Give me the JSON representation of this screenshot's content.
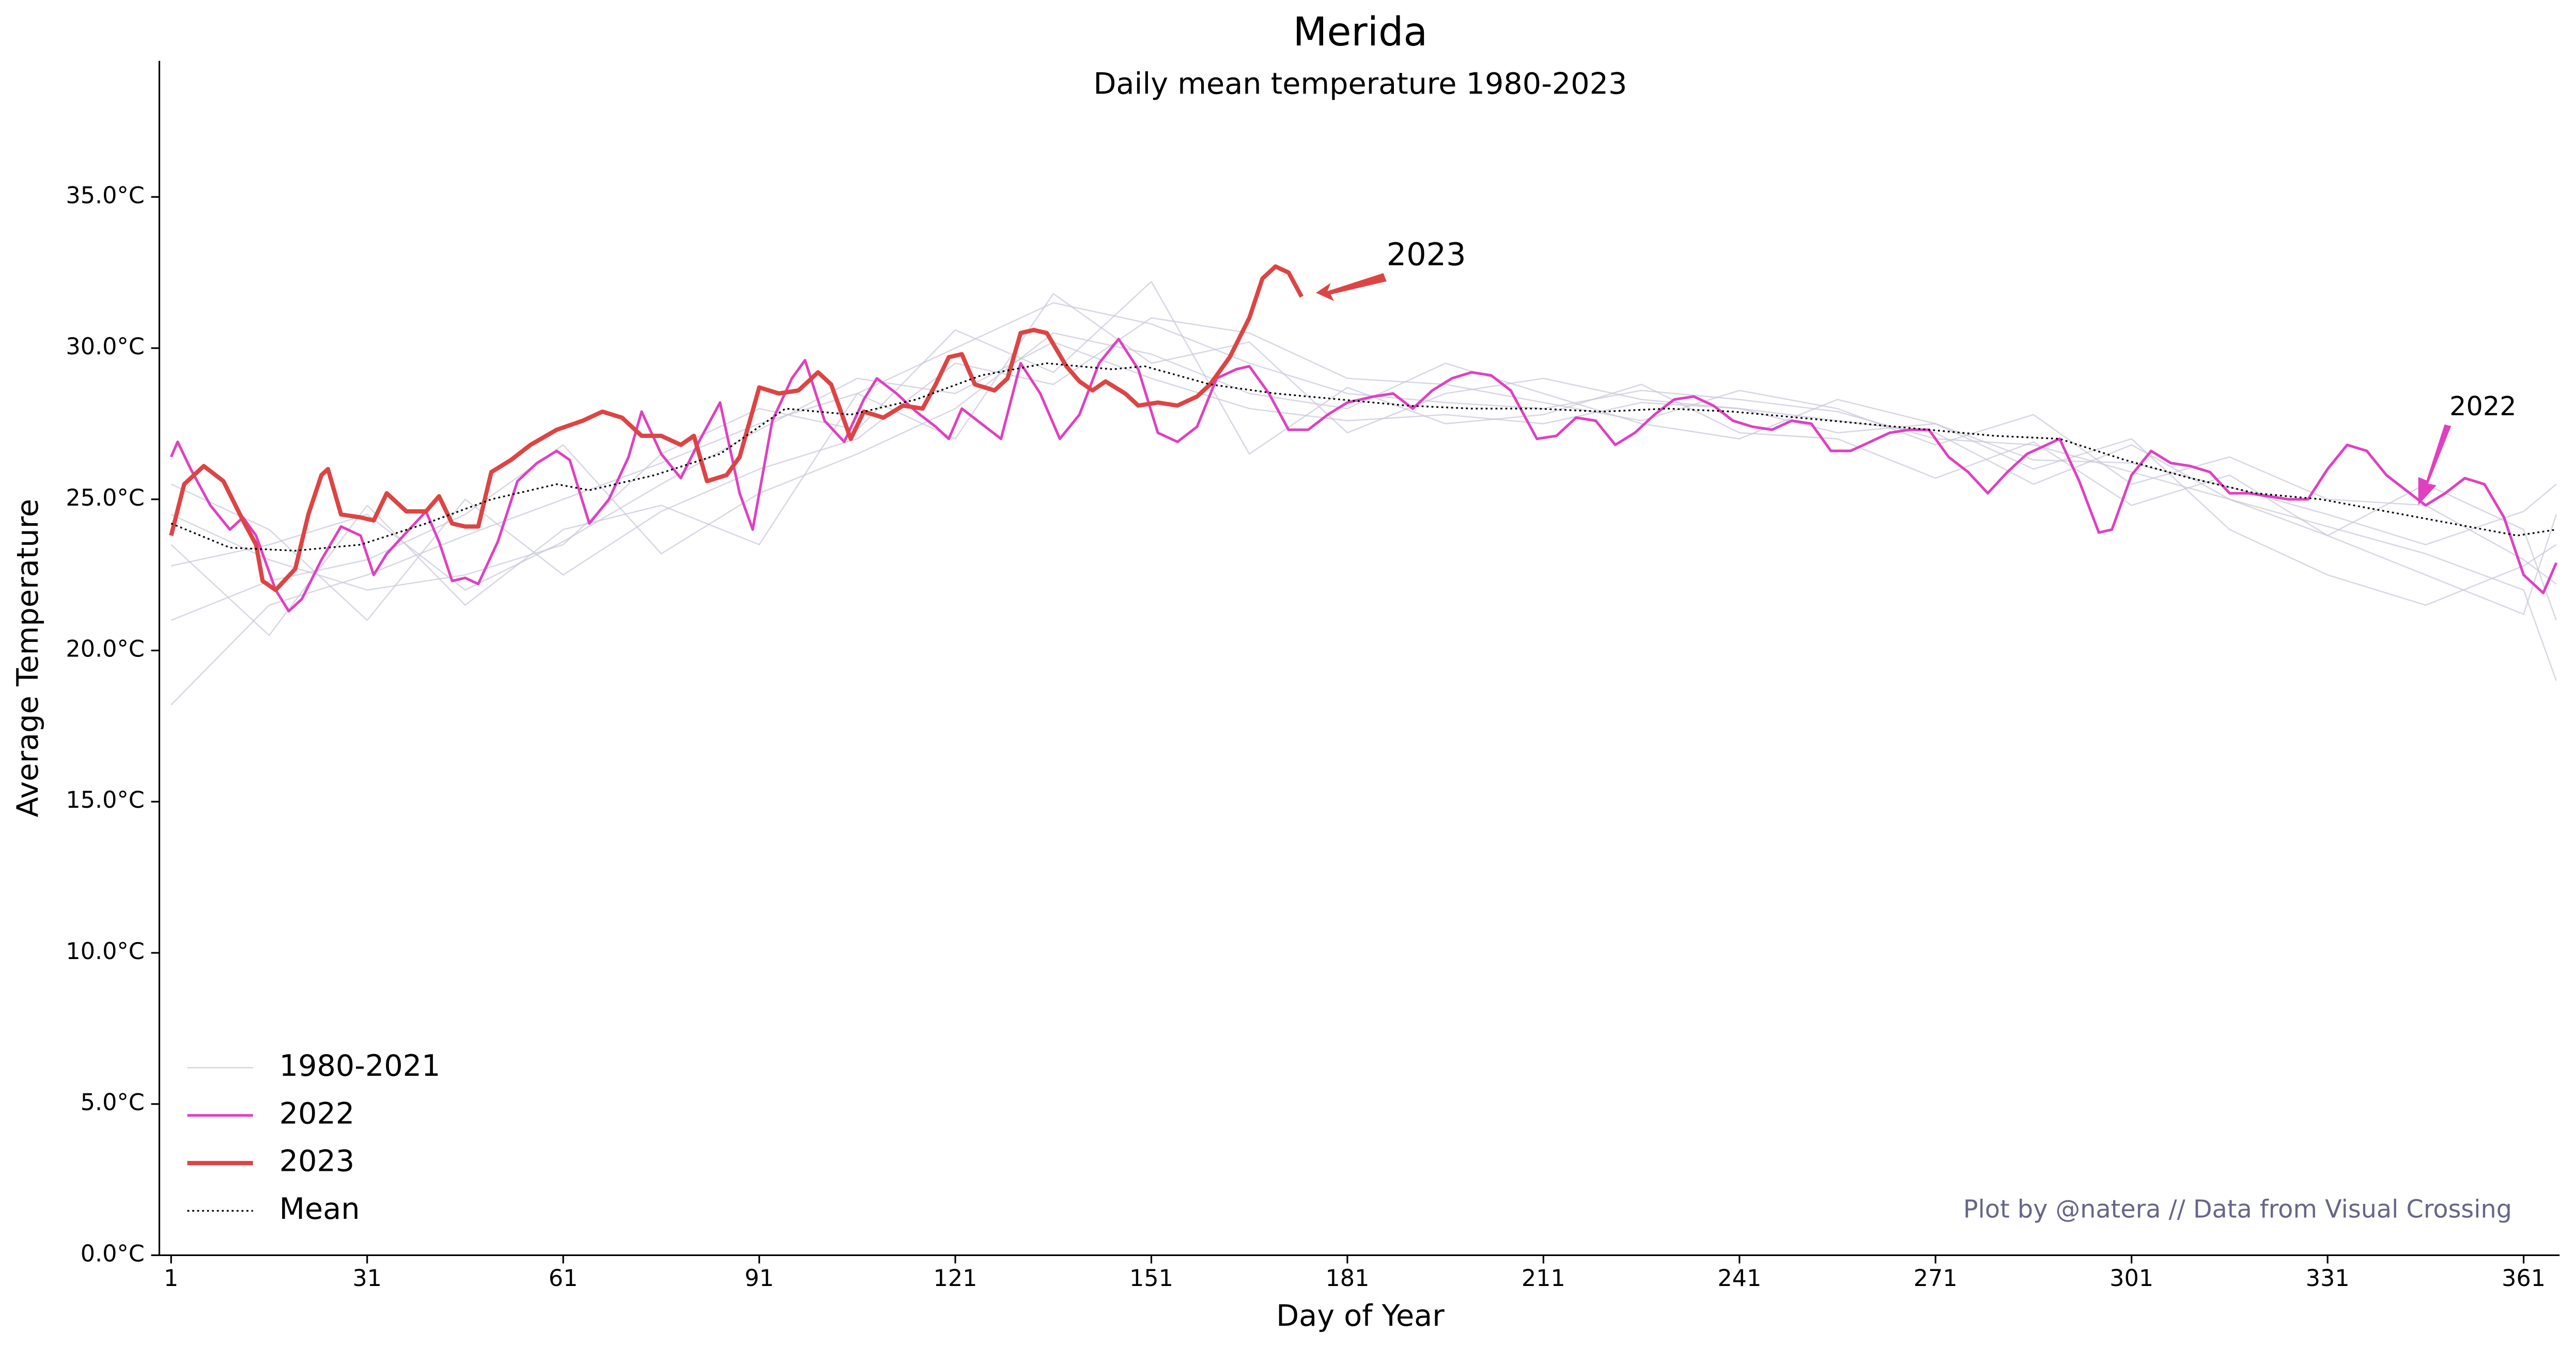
{
  "chart_data": {
    "type": "line",
    "title": "Merida",
    "subtitle": "Daily mean temperature 1980-2023",
    "x_label": "Day of Year",
    "y_label": "Average Temperature",
    "credit": "Plot by @natera // Data from Visual Crossing",
    "xlim": [
      -0.8,
      366.5
    ],
    "ylim": [
      0,
      39.5
    ],
    "xticks": [
      1,
      31,
      61,
      91,
      121,
      151,
      181,
      211,
      241,
      271,
      301,
      331,
      361
    ],
    "yticks": [
      {
        "value": 0,
        "label": "0.0°C"
      },
      {
        "value": 5,
        "label": "5.0°C"
      },
      {
        "value": 10,
        "label": "10.0°C"
      },
      {
        "value": 15,
        "label": "15.0°C"
      },
      {
        "value": 20,
        "label": "20.0°C"
      },
      {
        "value": 25,
        "label": "25.0°C"
      },
      {
        "value": 30,
        "label": "30.0°C"
      },
      {
        "value": 35,
        "label": "35.0°C"
      }
    ],
    "legend": "lower left",
    "annotations": [
      {
        "text": "2023"
      },
      {
        "text": "2022"
      }
    ],
    "series": [
      {
        "name": "1980-2021",
        "color": "#c6c6d8",
        "width": 0.8,
        "style": "solid",
        "x": [
          1,
          16,
          31,
          46,
          61,
          76,
          91,
          106,
          121,
          136,
          151,
          166,
          181,
          196,
          211,
          226,
          241,
          256,
          271,
          286,
          301,
          316,
          331,
          346,
          361,
          366
        ],
        "lines": [
          [
            18.2,
            21.5,
            22.5,
            23.8,
            25.0,
            26.2,
            27.5,
            28.5,
            30.0,
            31.5,
            30.8,
            29.5,
            28.5,
            28.2,
            28.0,
            28.6,
            28.3,
            27.9,
            27.0,
            26.8,
            25.9,
            25.0,
            24.1,
            23.2,
            22.0,
            19.0
          ],
          [
            22.8,
            23.5,
            24.5,
            22.0,
            23.6,
            25.5,
            27.3,
            29.0,
            28.5,
            30.2,
            29.0,
            28.0,
            27.6,
            27.8,
            27.5,
            28.2,
            28.0,
            27.2,
            27.5,
            26.3,
            26.2,
            25.4,
            24.5,
            23.5,
            24.6,
            25.5
          ],
          [
            25.5,
            24.0,
            21.0,
            25.0,
            22.5,
            24.6,
            26.0,
            27.0,
            29.5,
            28.8,
            31.0,
            30.5,
            29.0,
            28.8,
            28.2,
            27.6,
            28.6,
            28.0,
            26.8,
            27.8,
            25.5,
            26.4,
            25.0,
            24.8,
            23.0,
            22.2
          ],
          [
            21.0,
            22.3,
            23.0,
            24.5,
            26.8,
            23.2,
            25.2,
            26.5,
            28.0,
            30.5,
            29.8,
            28.5,
            28.0,
            29.5,
            28.5,
            27.5,
            27.0,
            28.3,
            27.5,
            26.0,
            27.0,
            24.0,
            22.5,
            21.5,
            22.8,
            23.5
          ],
          [
            24.5,
            23.0,
            22.0,
            22.5,
            23.5,
            26.5,
            28.0,
            27.3,
            30.6,
            29.2,
            32.2,
            26.5,
            28.7,
            27.5,
            27.8,
            28.8,
            27.2,
            27.0,
            25.7,
            26.9,
            24.8,
            25.8,
            23.8,
            25.5,
            24.0,
            21.0
          ],
          [
            23.5,
            20.5,
            24.8,
            21.5,
            24.0,
            24.8,
            23.5,
            28.5,
            27.0,
            31.8,
            29.5,
            30.2,
            27.2,
            28.5,
            29.0,
            28.3,
            28.0,
            27.6,
            27.2,
            25.5,
            26.8,
            25.0,
            23.8,
            22.5,
            21.2,
            24.5
          ]
        ]
      },
      {
        "name": "2022",
        "color": "#e040c0",
        "width": 1.6,
        "style": "solid",
        "x": [
          1,
          2,
          4,
          7,
          10,
          12,
          14,
          17,
          19,
          21,
          24,
          27,
          30,
          32,
          34,
          37,
          40,
          42,
          44,
          46,
          48,
          51,
          54,
          57,
          60,
          62,
          65,
          68,
          71,
          73,
          76,
          79,
          82,
          85,
          88,
          90,
          93,
          96,
          98,
          101,
          104,
          107,
          109,
          112,
          115,
          118,
          120,
          122,
          125,
          128,
          131,
          134,
          137,
          140,
          143,
          146,
          149,
          152,
          155,
          158,
          161,
          164,
          166,
          169,
          172,
          175,
          178,
          181,
          185,
          188,
          191,
          194,
          197,
          200,
          203,
          206,
          210,
          213,
          216,
          219,
          222,
          225,
          228,
          231,
          234,
          237,
          240,
          243,
          246,
          249,
          252,
          255,
          258,
          261,
          264,
          267,
          270,
          273,
          276,
          279,
          282,
          285,
          288,
          290,
          293,
          296,
          298,
          301,
          304,
          307,
          310,
          313,
          316,
          319,
          322,
          325,
          328,
          331,
          334,
          337,
          340,
          343,
          346,
          349,
          352,
          355,
          358,
          361,
          364,
          366
        ],
        "values": [
          26.4,
          26.9,
          26.0,
          24.8,
          24.0,
          24.4,
          23.8,
          22.0,
          21.3,
          21.7,
          23.0,
          24.1,
          23.8,
          22.5,
          23.2,
          23.9,
          24.6,
          23.6,
          22.3,
          22.4,
          22.2,
          23.6,
          25.6,
          26.2,
          26.6,
          26.3,
          24.2,
          25.0,
          26.4,
          27.9,
          26.5,
          25.7,
          27.0,
          28.2,
          25.2,
          24.0,
          27.6,
          29.0,
          29.6,
          27.6,
          26.9,
          28.3,
          29.0,
          28.5,
          27.9,
          27.4,
          27.0,
          28.0,
          27.5,
          27.0,
          29.5,
          28.5,
          27.0,
          27.8,
          29.5,
          30.3,
          29.3,
          27.2,
          26.9,
          27.4,
          29.0,
          29.3,
          29.4,
          28.5,
          27.3,
          27.3,
          27.8,
          28.2,
          28.4,
          28.5,
          28.0,
          28.6,
          29.0,
          29.2,
          29.1,
          28.6,
          27.0,
          27.1,
          27.7,
          27.6,
          26.8,
          27.2,
          27.8,
          28.3,
          28.4,
          28.1,
          27.6,
          27.4,
          27.3,
          27.6,
          27.5,
          26.6,
          26.6,
          26.9,
          27.2,
          27.3,
          27.3,
          26.4,
          25.9,
          25.2,
          25.9,
          26.5,
          26.8,
          27.0,
          25.6,
          23.9,
          24.0,
          25.8,
          26.6,
          26.2,
          26.1,
          25.9,
          25.2,
          25.2,
          25.1,
          25.0,
          25.0,
          26.0,
          26.8,
          26.6,
          25.8,
          25.3,
          24.8,
          25.2,
          25.7,
          25.5,
          24.4,
          22.5,
          21.9,
          22.9
        ]
      },
      {
        "name": "2023",
        "color": "#dd4444",
        "width": 2.6,
        "style": "solid",
        "x": [
          1,
          3,
          6,
          9,
          12,
          14,
          15,
          17,
          20,
          22,
          24,
          25,
          27,
          30,
          32,
          34,
          37,
          40,
          42,
          44,
          46,
          48,
          50,
          53,
          56,
          60,
          64,
          67,
          70,
          73,
          76,
          79,
          81,
          83,
          86,
          88,
          91,
          94,
          97,
          100,
          102,
          105,
          107,
          110,
          113,
          116,
          118,
          120,
          122,
          124,
          127,
          129,
          131,
          133,
          135,
          138,
          140,
          142,
          144,
          147,
          149,
          152,
          155,
          158,
          160,
          163,
          166,
          168,
          170,
          172,
          174
        ],
        "values": [
          23.8,
          25.5,
          26.1,
          25.6,
          24.3,
          23.5,
          22.3,
          22.0,
          22.7,
          24.5,
          25.8,
          26.0,
          24.5,
          24.4,
          24.3,
          25.2,
          24.6,
          24.6,
          25.1,
          24.2,
          24.1,
          24.1,
          25.9,
          26.3,
          26.8,
          27.3,
          27.6,
          27.9,
          27.7,
          27.1,
          27.1,
          26.8,
          27.1,
          25.6,
          25.8,
          26.4,
          28.7,
          28.5,
          28.6,
          29.2,
          28.8,
          27.0,
          27.9,
          27.7,
          28.1,
          28.0,
          28.8,
          29.7,
          29.8,
          28.8,
          28.6,
          29.0,
          30.5,
          30.6,
          30.5,
          29.4,
          28.9,
          28.6,
          28.9,
          28.5,
          28.1,
          28.2,
          28.1,
          28.4,
          28.8,
          29.7,
          31.0,
          32.3,
          32.7,
          32.5,
          31.7
        ]
      },
      {
        "name": "Mean",
        "color": "#000000",
        "width": 1,
        "style": "dotted",
        "x": [
          1,
          10,
          20,
          30,
          40,
          50,
          60,
          65,
          75,
          85,
          95,
          105,
          115,
          125,
          135,
          145,
          150,
          160,
          170,
          180,
          190,
          200,
          210,
          220,
          230,
          240,
          250,
          260,
          270,
          280,
          290,
          300,
          310,
          320,
          330,
          340,
          350,
          360,
          366
        ],
        "values": [
          24.2,
          23.4,
          23.3,
          23.5,
          24.2,
          25.0,
          25.5,
          25.3,
          25.8,
          26.5,
          28.0,
          27.8,
          28.3,
          29.1,
          29.5,
          29.3,
          29.4,
          28.8,
          28.5,
          28.3,
          28.1,
          28.0,
          28.0,
          27.9,
          28.0,
          27.9,
          27.7,
          27.5,
          27.3,
          27.1,
          27.0,
          26.3,
          25.7,
          25.2,
          25.0,
          24.6,
          24.2,
          23.8,
          24.0
        ]
      }
    ]
  }
}
